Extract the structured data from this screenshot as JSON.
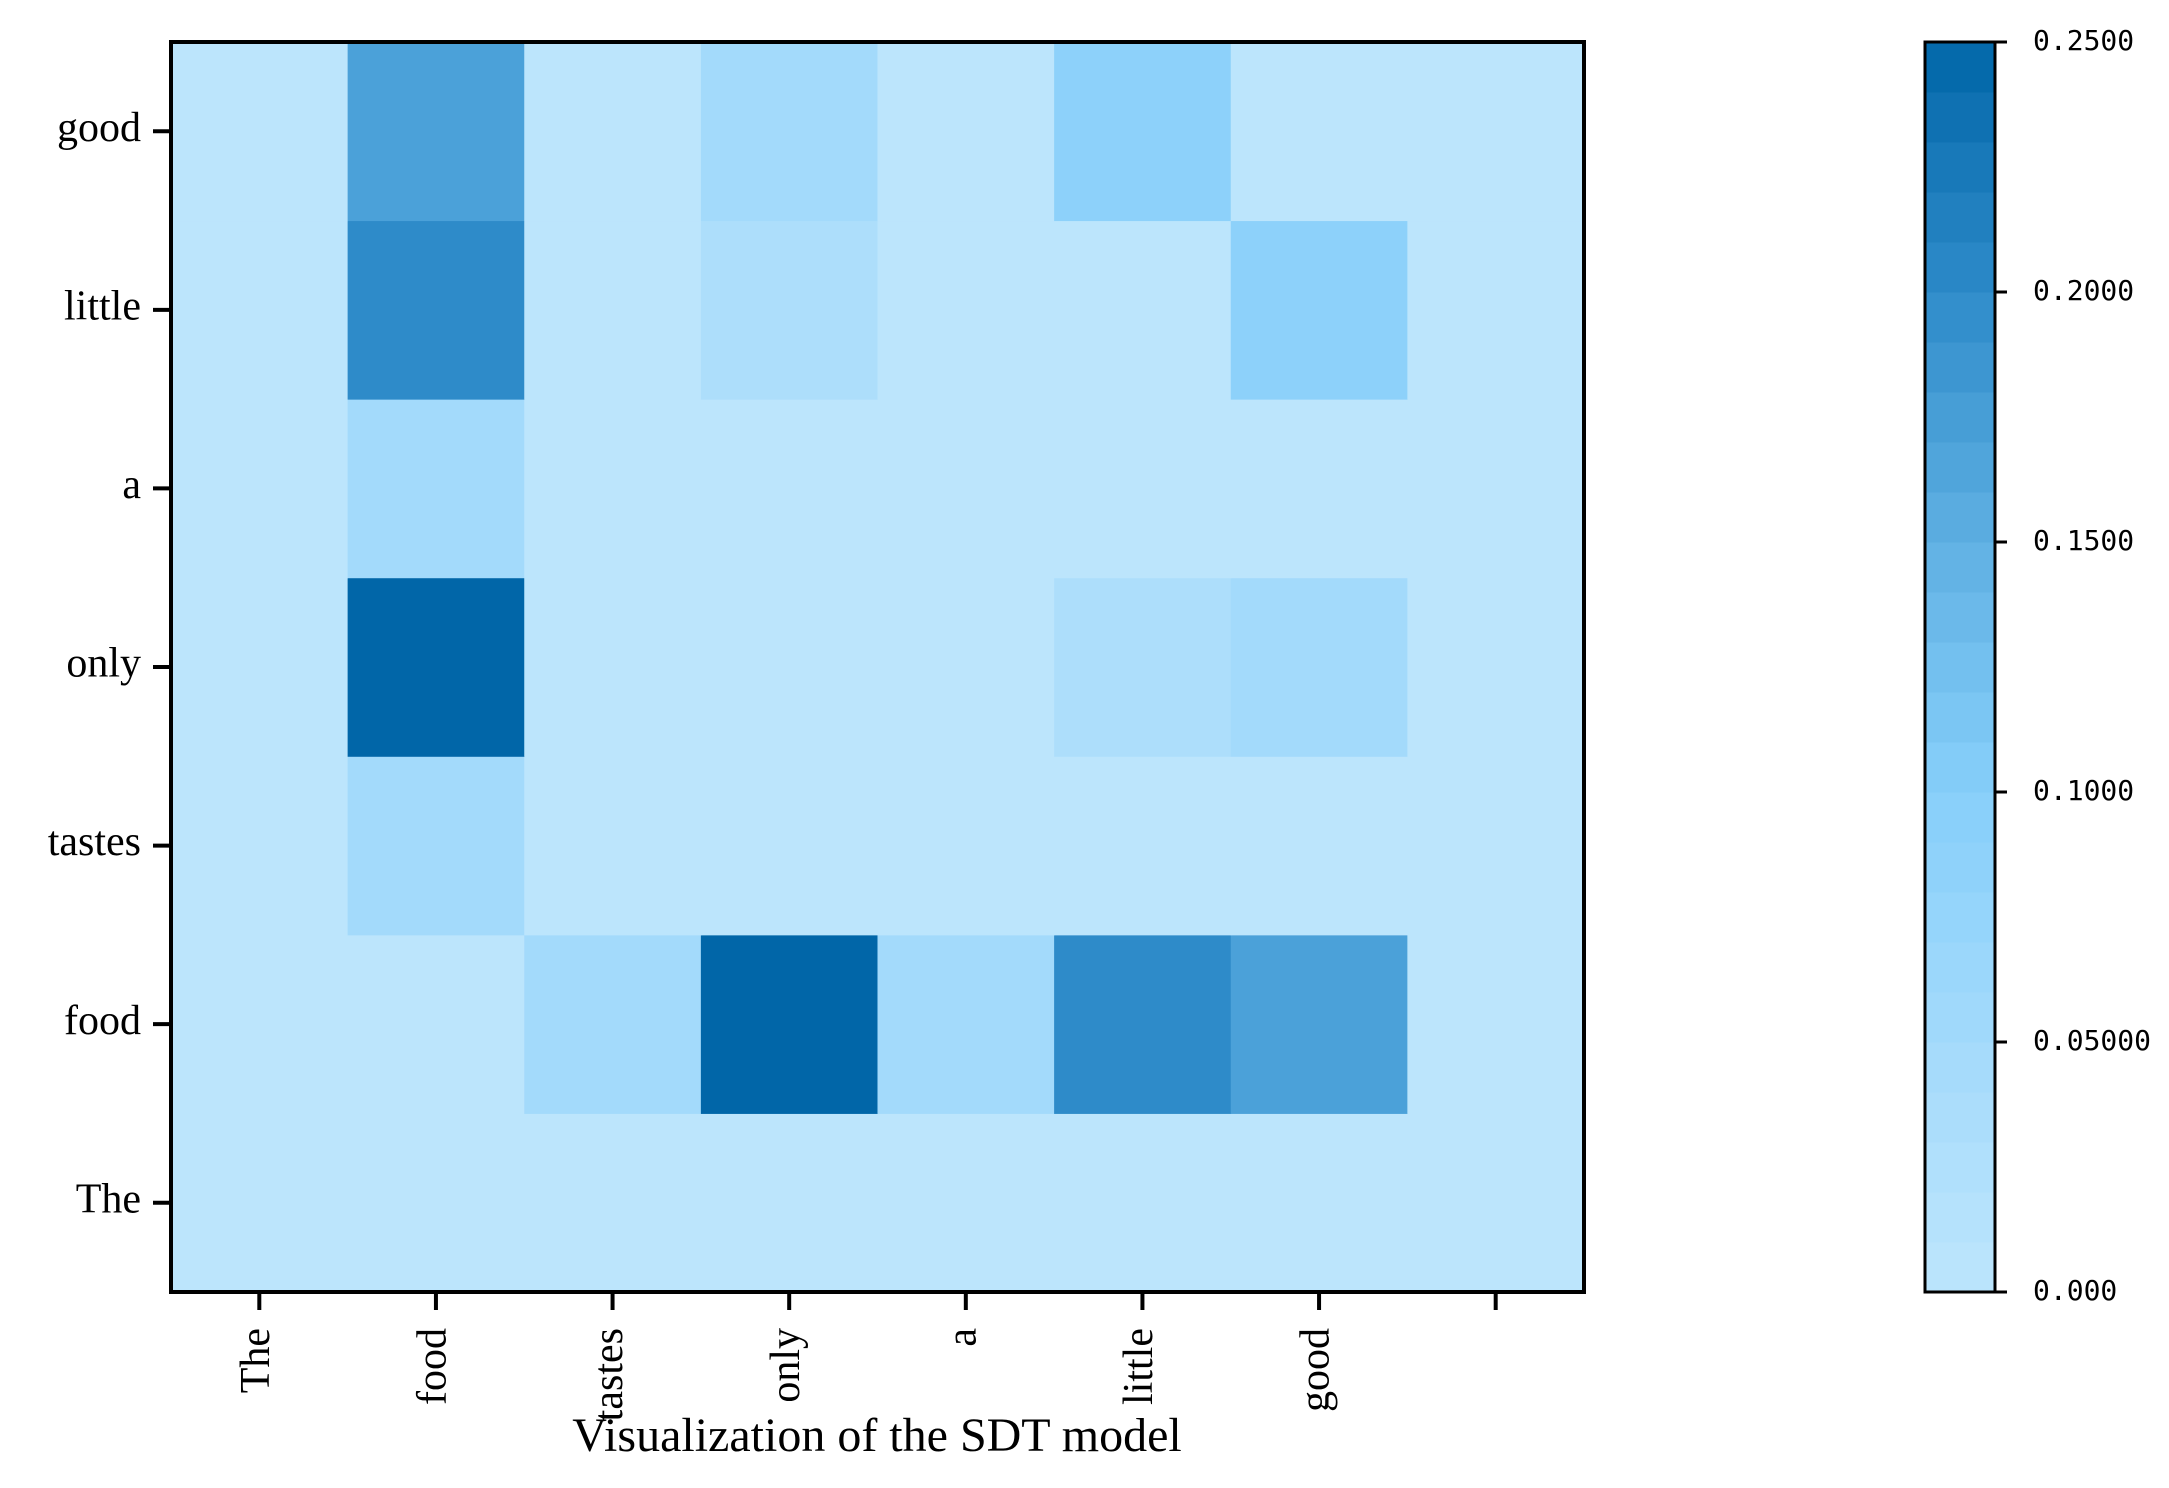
{
  "chart_data": {
    "type": "heatmap",
    "title": "Visualization of the SDT model",
    "x_categories": [
      "The",
      "food",
      "tastes",
      "only",
      "a",
      "little",
      "good",
      null
    ],
    "y_categories": [
      "The",
      "food",
      "tastes",
      "only",
      "a",
      "little",
      "good"
    ],
    "z": [
      [
        0,
        0,
        0,
        0,
        0,
        0,
        0,
        0
      ],
      [
        0,
        0,
        0.05,
        0.25,
        0.05,
        0.2,
        0.17,
        0
      ],
      [
        0,
        0.05,
        0,
        0,
        0,
        0,
        0,
        0
      ],
      [
        0,
        0.25,
        0,
        0,
        0,
        0.03,
        0.05,
        0
      ],
      [
        0,
        0.05,
        0,
        0,
        0,
        0,
        0,
        0
      ],
      [
        0,
        0.2,
        0,
        0.03,
        0,
        0,
        0.09,
        0
      ],
      [
        0,
        0.17,
        0,
        0.05,
        0,
        0.09,
        0,
        0
      ]
    ],
    "zlim": [
      0,
      0.25
    ],
    "zticks": [
      {
        "value": 0,
        "label": "0.000"
      },
      {
        "value": 0.05,
        "label": "0.05000"
      },
      {
        "value": 0.1,
        "label": "0.1000"
      },
      {
        "value": 0.15,
        "label": "0.1500"
      },
      {
        "value": 0.2,
        "label": "0.2000"
      },
      {
        "value": 0.25,
        "label": "0.2500"
      }
    ],
    "colormap": [
      "#bce5fc",
      "#a3dafb",
      "#87cffa",
      "#5fb0e3",
      "#2e8bc9",
      "#0166a8"
    ]
  }
}
